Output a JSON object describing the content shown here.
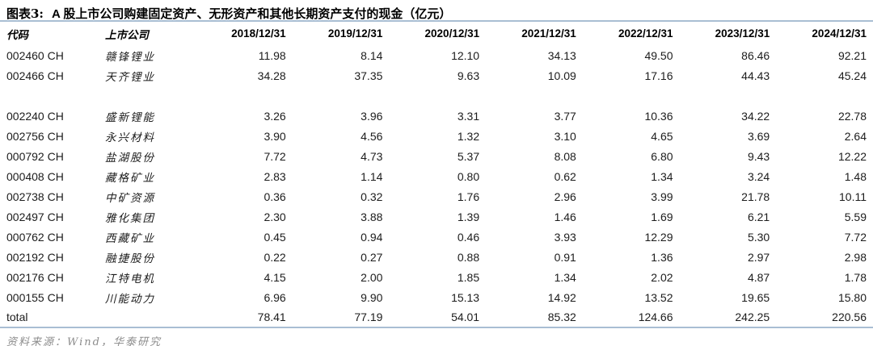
{
  "header": {
    "figure_label": "图表3:",
    "title": "A 股上市公司购建固定资产、无形资产和其他长期资产支付的现金（亿元）"
  },
  "table": {
    "columns": [
      "代码",
      "上市公司",
      "2018/12/31",
      "2019/12/31",
      "2020/12/31",
      "2021/12/31",
      "2022/12/31",
      "2023/12/31",
      "2024/12/31"
    ],
    "rows": [
      {
        "code": "002460 CH",
        "company": "赣锋锂业",
        "values": [
          "11.98",
          "8.14",
          "12.10",
          "34.13",
          "49.50",
          "86.46",
          "92.21"
        ]
      },
      {
        "code": "002466 CH",
        "company": "天齐锂业",
        "values": [
          "34.28",
          "37.35",
          "9.63",
          "10.09",
          "17.16",
          "44.43",
          "45.24"
        ]
      },
      {
        "code": "",
        "company": "",
        "values": [
          "",
          "",
          "",
          "",
          "",
          "",
          ""
        ]
      },
      {
        "code": "002240 CH",
        "company": "盛新锂能",
        "values": [
          "3.26",
          "3.96",
          "3.31",
          "3.77",
          "10.36",
          "34.22",
          "22.78"
        ]
      },
      {
        "code": "002756 CH",
        "company": "永兴材料",
        "values": [
          "3.90",
          "4.56",
          "1.32",
          "3.10",
          "4.65",
          "3.69",
          "2.64"
        ]
      },
      {
        "code": "000792 CH",
        "company": "盐湖股份",
        "values": [
          "7.72",
          "4.73",
          "5.37",
          "8.08",
          "6.80",
          "9.43",
          "12.22"
        ]
      },
      {
        "code": "000408 CH",
        "company": "藏格矿业",
        "values": [
          "2.83",
          "1.14",
          "0.80",
          "0.62",
          "1.34",
          "3.24",
          "1.48"
        ]
      },
      {
        "code": "002738 CH",
        "company": "中矿资源",
        "values": [
          "0.36",
          "0.32",
          "1.76",
          "2.96",
          "3.99",
          "21.78",
          "10.11"
        ]
      },
      {
        "code": "002497 CH",
        "company": "雅化集团",
        "values": [
          "2.30",
          "3.88",
          "1.39",
          "1.46",
          "1.69",
          "6.21",
          "5.59"
        ]
      },
      {
        "code": "000762 CH",
        "company": "西藏矿业",
        "values": [
          "0.45",
          "0.94",
          "0.46",
          "3.93",
          "12.29",
          "5.30",
          "7.72"
        ]
      },
      {
        "code": "002192 CH",
        "company": "融捷股份",
        "values": [
          "0.22",
          "0.27",
          "0.88",
          "0.91",
          "1.36",
          "2.97",
          "2.98"
        ]
      },
      {
        "code": "002176 CH",
        "company": "江特电机",
        "values": [
          "4.15",
          "2.00",
          "1.85",
          "1.34",
          "2.02",
          "4.87",
          "1.78"
        ]
      },
      {
        "code": "000155 CH",
        "company": "川能动力",
        "values": [
          "6.96",
          "9.90",
          "15.13",
          "14.92",
          "13.52",
          "19.65",
          "15.80"
        ]
      }
    ],
    "total_row": {
      "label": "total",
      "values": [
        "78.41",
        "77.19",
        "54.01",
        "85.32",
        "124.66",
        "242.25",
        "220.56"
      ]
    }
  },
  "footer": {
    "source_text": "资料来源：Wind，华泰研究"
  },
  "colors": {
    "rule": "#a9bed3",
    "text": "#1c1c1c",
    "muted": "#8c8c8c"
  }
}
